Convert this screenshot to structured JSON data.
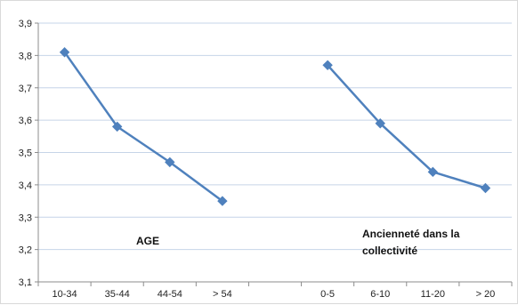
{
  "chart_data": {
    "type": "line",
    "categories": [
      "10-34",
      "35-44",
      "44-54",
      "> 54",
      "",
      "0-5",
      "6-10",
      "11-20",
      "> 20"
    ],
    "series": [
      {
        "values": [
          3.81,
          3.58,
          3.47,
          3.35,
          null,
          null,
          null,
          null,
          null
        ]
      },
      {
        "values": [
          null,
          null,
          null,
          null,
          null,
          3.77,
          3.59,
          3.44,
          3.39
        ]
      }
    ],
    "ylim": [
      3.1,
      3.9
    ],
    "yticks": [
      "3,1",
      "3,2",
      "3,3",
      "3,4",
      "3,5",
      "3,6",
      "3,7",
      "3,8",
      "3,9"
    ],
    "annotations": [
      {
        "lines": [
          "AGE"
        ]
      },
      {
        "lines": [
          "Ancienneté dans la",
          "collectivité"
        ]
      }
    ],
    "grid": true,
    "legend": "none",
    "colors": {
      "line": "#4f81bd",
      "marker": "#4f81bd",
      "grid": "#c6d4e8",
      "axis": "#8c8c8c"
    }
  }
}
